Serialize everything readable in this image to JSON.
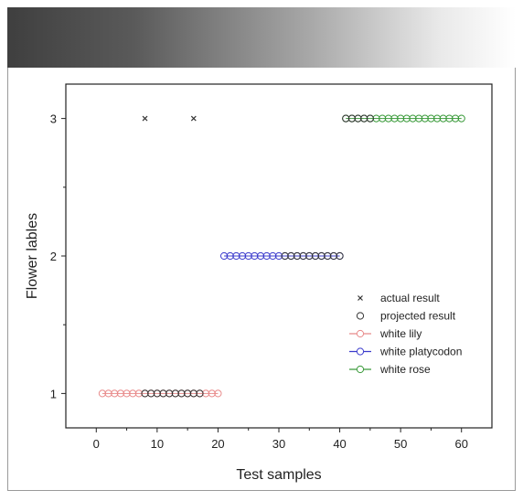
{
  "chart_data": {
    "type": "scatter",
    "title": "",
    "xlabel": "Test samples",
    "ylabel": "Flower lables",
    "xlim": [
      -5,
      65
    ],
    "ylim": [
      0.75,
      3.25
    ],
    "xticks": [
      0,
      10,
      20,
      30,
      40,
      50,
      60
    ],
    "yticks": [
      1,
      2,
      3
    ],
    "grid": false,
    "legend_position": "center-right",
    "series": [
      {
        "name": "actual result",
        "marker": "x",
        "color": "#333333",
        "x": [
          8,
          16
        ],
        "y": [
          3,
          3
        ]
      },
      {
        "name": "projected result",
        "marker": "open-circle",
        "color": "#333333",
        "x": [
          8,
          9,
          10,
          11,
          12,
          13,
          14,
          15,
          16,
          17,
          31,
          32,
          33,
          34,
          35,
          36,
          37,
          38,
          39,
          40,
          41,
          42,
          43,
          44,
          45
        ],
        "y": [
          1,
          1,
          1,
          1,
          1,
          1,
          1,
          1,
          1,
          1,
          2,
          2,
          2,
          2,
          2,
          2,
          2,
          2,
          2,
          2,
          3,
          3,
          3,
          3,
          3
        ]
      },
      {
        "name": "white lily",
        "marker": "open-circle-line",
        "color": "#e88a8a",
        "x": [
          1,
          2,
          3,
          4,
          5,
          6,
          7,
          8,
          9,
          10,
          11,
          12,
          13,
          14,
          15,
          16,
          17,
          18,
          19,
          20
        ],
        "y": [
          1,
          1,
          1,
          1,
          1,
          1,
          1,
          1,
          1,
          1,
          1,
          1,
          1,
          1,
          1,
          1,
          1,
          1,
          1,
          1
        ]
      },
      {
        "name": "white platycodon",
        "marker": "open-circle-line",
        "color": "#3a3acc",
        "x": [
          21,
          22,
          23,
          24,
          25,
          26,
          27,
          28,
          29,
          30,
          31,
          32,
          33,
          34,
          35,
          36,
          37,
          38,
          39,
          40
        ],
        "y": [
          2,
          2,
          2,
          2,
          2,
          2,
          2,
          2,
          2,
          2,
          2,
          2,
          2,
          2,
          2,
          2,
          2,
          2,
          2,
          2
        ]
      },
      {
        "name": "white rose",
        "marker": "open-circle-line",
        "color": "#3a9a3a",
        "x": [
          41,
          42,
          43,
          44,
          45,
          46,
          47,
          48,
          49,
          50,
          51,
          52,
          53,
          54,
          55,
          56,
          57,
          58,
          59,
          60
        ],
        "y": [
          3,
          3,
          3,
          3,
          3,
          3,
          3,
          3,
          3,
          3,
          3,
          3,
          3,
          3,
          3,
          3,
          3,
          3,
          3,
          3
        ]
      }
    ]
  }
}
